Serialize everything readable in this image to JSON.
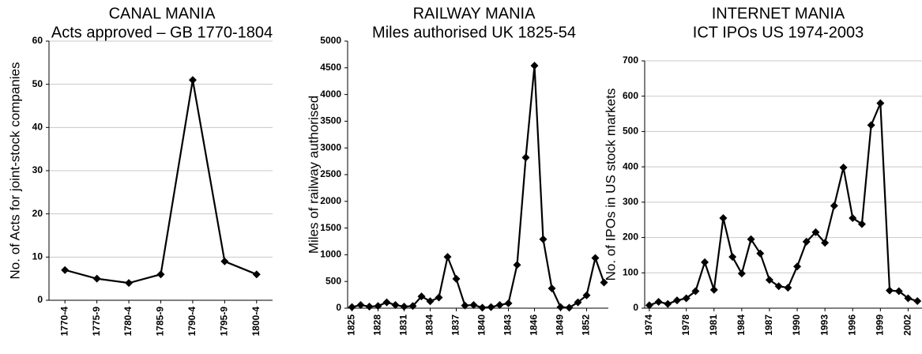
{
  "chart_data": [
    {
      "type": "line",
      "title": "CANAL MANIA",
      "subtitle": "Acts approved – GB 1770-1804",
      "y_label": "No. of Acts for joint-stock companies",
      "categories": [
        "1770-4",
        "1775-9",
        "1780-4",
        "1785-9",
        "1790-4",
        "1795-9",
        "1800-4"
      ],
      "values": [
        7,
        5,
        4,
        6,
        51,
        9,
        6
      ],
      "color": "#000000",
      "ylim": [
        0,
        60
      ],
      "yticks": [
        0,
        10,
        20,
        30,
        40,
        50,
        60
      ],
      "grid": true
    },
    {
      "type": "line",
      "title": "RAILWAY MANIA",
      "subtitle": "Miles authorised UK 1825-54",
      "y_label": "Miles of railway authorised",
      "categories": [
        "1825",
        null,
        null,
        "1828",
        null,
        null,
        "1831",
        null,
        null,
        "1834",
        null,
        null,
        "1837",
        null,
        null,
        "1840",
        null,
        null,
        "1843",
        null,
        null,
        "1846",
        null,
        null,
        "1849",
        null,
        null,
        "1852",
        null,
        null
      ],
      "values": [
        20,
        60,
        30,
        40,
        110,
        60,
        30,
        40,
        220,
        130,
        200,
        960,
        550,
        50,
        60,
        10,
        20,
        60,
        90,
        810,
        2820,
        4540,
        1290,
        370,
        20,
        10,
        110,
        240,
        940,
        480
      ],
      "color": "#000000",
      "ylim": [
        0,
        5000
      ],
      "yticks": [
        0,
        500,
        1000,
        1500,
        2000,
        2500,
        3000,
        3500,
        4000,
        4500,
        5000
      ],
      "grid": false
    },
    {
      "type": "line",
      "title": "INTERNET MANIA",
      "subtitle": "ICT IPOs US 1974-2003",
      "y_label": "No. of IPOs in US stock markets",
      "categories": [
        "1974",
        null,
        null,
        null,
        "1978",
        null,
        null,
        "1981",
        null,
        null,
        "1984",
        null,
        null,
        "1987",
        null,
        null,
        "1990",
        null,
        null,
        "1993",
        null,
        null,
        "1996",
        null,
        null,
        "1999",
        null,
        null,
        "2002",
        null
      ],
      "values": [
        8,
        18,
        12,
        22,
        28,
        48,
        130,
        52,
        255,
        145,
        98,
        195,
        155,
        80,
        62,
        58,
        118,
        188,
        215,
        185,
        290,
        398,
        255,
        238,
        518,
        580,
        50,
        48,
        28,
        20
      ],
      "color": "#000000",
      "ylim": [
        0,
        700
      ],
      "yticks": [
        0,
        100,
        200,
        300,
        400,
        500,
        600,
        700
      ],
      "grid": true
    }
  ]
}
